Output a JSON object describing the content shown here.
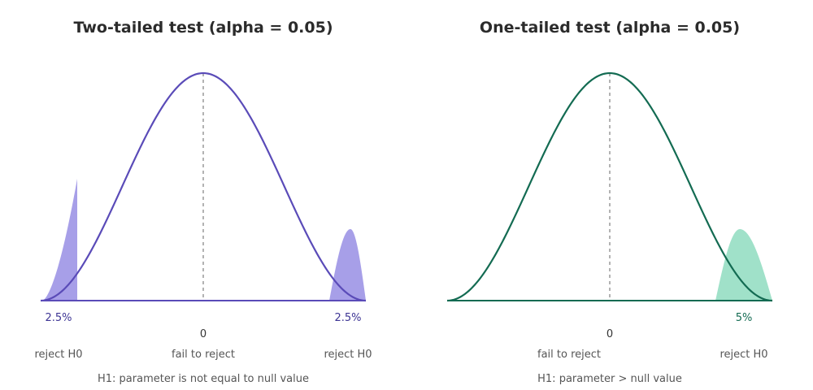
{
  "chart_data": [
    {
      "type": "area",
      "title": "Two-tailed test (alpha = 0.05)",
      "xlabel": "",
      "ylabel": "",
      "alpha": 0.05,
      "center_label": "0",
      "tails": [
        {
          "side": "left",
          "label": "2.5%",
          "area": 0.025
        },
        {
          "side": "right",
          "label": "2.5%",
          "area": 0.025
        }
      ],
      "regions": [
        {
          "label": "reject H0",
          "side": "left"
        },
        {
          "label": "fail to reject",
          "side": "center"
        },
        {
          "label": "reject H0",
          "side": "right"
        }
      ],
      "hypothesis": "H1: parameter is not equal to null value",
      "colors": {
        "curve": "#5a4bb8",
        "fill": "#a79fe8",
        "label": "#3d3494"
      },
      "grid": false
    },
    {
      "type": "area",
      "title": "One-tailed test (alpha = 0.05)",
      "xlabel": "",
      "ylabel": "",
      "alpha": 0.05,
      "center_label": "0",
      "tails": [
        {
          "side": "right",
          "label": "5%",
          "area": 0.05
        }
      ],
      "regions": [
        {
          "label": "fail to reject",
          "side": "center"
        },
        {
          "label": "reject H0",
          "side": "right"
        }
      ],
      "hypothesis": "H1: parameter > null value",
      "colors": {
        "curve": "#136b52",
        "fill": "#8fdcbf",
        "label": "#136b52"
      },
      "grid": false
    }
  ]
}
